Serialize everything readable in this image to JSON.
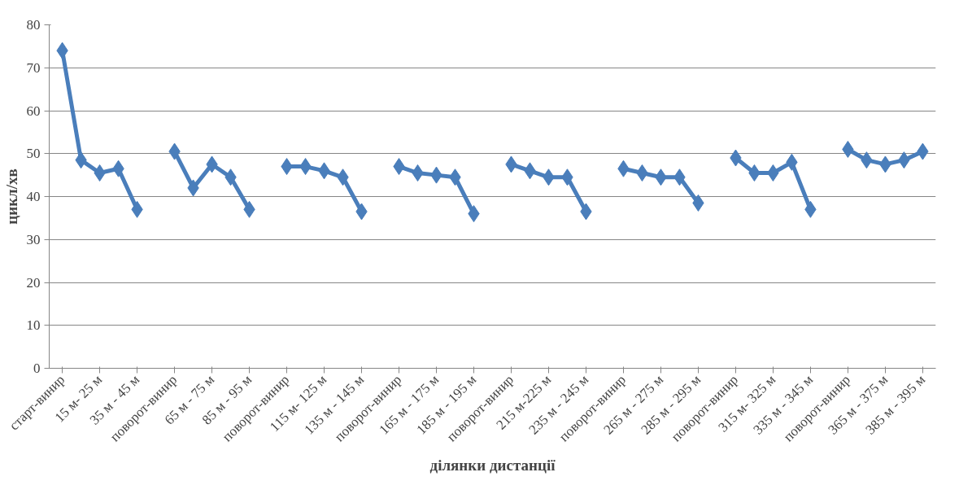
{
  "chart_data": {
    "type": "line",
    "xlabel": "ділянки дистанції",
    "ylabel": "цикл/хв",
    "categories": [
      "старт-винир",
      null,
      "15 м- 25 м",
      null,
      "35 м - 45 м",
      null,
      "поворот-винир",
      null,
      "65 м - 75 м",
      null,
      "85 м - 95 м",
      null,
      "поворот-винир",
      null,
      "115 м- 125 м",
      null,
      "135 м - 145 м",
      null,
      "поворот-винир",
      null,
      "165 м - 175 м",
      null,
      "185 м - 195 м",
      null,
      "поворот-винир",
      null,
      "215 м-225 м",
      null,
      "235 м - 245 м",
      null,
      "поворот-винир",
      null,
      "265 м - 275 м",
      null,
      "285 м - 295 м",
      null,
      "поворот-винир",
      null,
      "315 м- 325 м",
      null,
      "335 м - 345 м",
      null,
      "поворот-винир",
      null,
      "365 м - 375 м",
      null,
      "385 м - 395 м"
    ],
    "series": [
      {
        "color": "#4a7ebb",
        "values": [
          74,
          48.5,
          45.5,
          46.5,
          37,
          null,
          50.5,
          42,
          47.5,
          44.5,
          37,
          null,
          47,
          47,
          46,
          44.5,
          36.5,
          null,
          47,
          45.5,
          45,
          44.5,
          36,
          null,
          47.5,
          46,
          44.5,
          44.5,
          36.5,
          null,
          46.5,
          45.5,
          44.5,
          44.5,
          38.5,
          null,
          49,
          45.5,
          45.5,
          48,
          37,
          null,
          51,
          48.5,
          47.5,
          48.5,
          50.5
        ]
      }
    ],
    "ylim": [
      0,
      80
    ],
    "yticks": [
      0,
      10,
      20,
      30,
      40,
      50,
      60,
      70,
      80
    ],
    "grid": "y",
    "marker": "diamond",
    "line_style": "solid"
  }
}
